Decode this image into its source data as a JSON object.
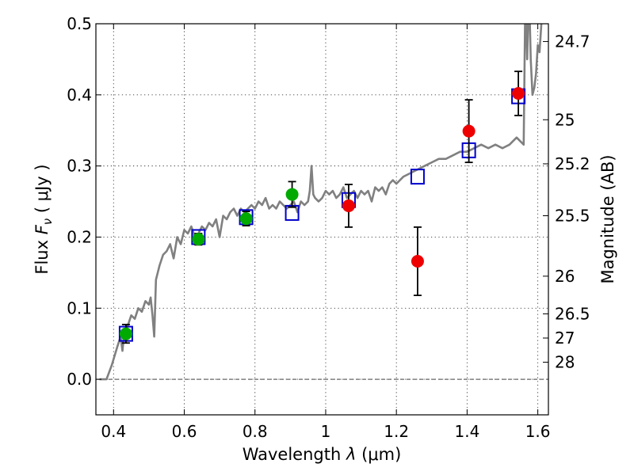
{
  "chart_data": {
    "type": "scatter",
    "xlabel": {
      "prefix": "Wavelength ",
      "symbol": "λ",
      "unit": " (μm)"
    },
    "ylabel": {
      "prefix": "Flux ",
      "symbol": "F",
      "subscript": "ν",
      "unit": " ( μJy )"
    },
    "y2label": "Magnitude (AB)",
    "xlim": [
      0.35,
      1.63
    ],
    "ylim": [
      -0.05,
      0.5
    ],
    "grid": true,
    "x_ticks": [
      0.4,
      0.6,
      0.8,
      1.0,
      1.2,
      1.4,
      1.6
    ],
    "x_tick_labels": [
      "0.4",
      "0.6",
      "0.8",
      "1",
      "1.2",
      "1.4",
      "1.6"
    ],
    "y_ticks": [
      0.0,
      0.1,
      0.2,
      0.3,
      0.4,
      0.5
    ],
    "y_tick_labels": [
      "0.0",
      "0.1",
      "0.2",
      "0.3",
      "0.4",
      "0.5"
    ],
    "magnitude_ticks": [
      {
        "label": "24.7",
        "flux": 0.475
      },
      {
        "label": "25",
        "flux": 0.365
      },
      {
        "label": "25.2",
        "flux": 0.303
      },
      {
        "label": "25.5",
        "flux": 0.23
      },
      {
        "label": "26",
        "flux": 0.145
      },
      {
        "label": "26.5",
        "flux": 0.092
      },
      {
        "label": "27",
        "flux": 0.058
      },
      {
        "label": "28",
        "flux": 0.024
      }
    ],
    "series": [
      {
        "name": "model_spectrum",
        "kind": "line",
        "color": "#808080",
        "points": [
          [
            0.36,
            0.0
          ],
          [
            0.38,
            0.0
          ],
          [
            0.395,
            0.02
          ],
          [
            0.41,
            0.045
          ],
          [
            0.42,
            0.06
          ],
          [
            0.425,
            0.04
          ],
          [
            0.43,
            0.065
          ],
          [
            0.44,
            0.075
          ],
          [
            0.45,
            0.09
          ],
          [
            0.46,
            0.085
          ],
          [
            0.47,
            0.1
          ],
          [
            0.48,
            0.095
          ],
          [
            0.49,
            0.11
          ],
          [
            0.5,
            0.105
          ],
          [
            0.505,
            0.115
          ],
          [
            0.51,
            0.09
          ],
          [
            0.515,
            0.06
          ],
          [
            0.52,
            0.14
          ],
          [
            0.53,
            0.16
          ],
          [
            0.54,
            0.175
          ],
          [
            0.55,
            0.18
          ],
          [
            0.56,
            0.19
          ],
          [
            0.57,
            0.17
          ],
          [
            0.58,
            0.2
          ],
          [
            0.59,
            0.19
          ],
          [
            0.6,
            0.21
          ],
          [
            0.61,
            0.205
          ],
          [
            0.62,
            0.215
          ],
          [
            0.63,
            0.2
          ],
          [
            0.64,
            0.205
          ],
          [
            0.65,
            0.215
          ],
          [
            0.66,
            0.21
          ],
          [
            0.67,
            0.22
          ],
          [
            0.68,
            0.215
          ],
          [
            0.69,
            0.225
          ],
          [
            0.7,
            0.2
          ],
          [
            0.71,
            0.23
          ],
          [
            0.72,
            0.225
          ],
          [
            0.73,
            0.235
          ],
          [
            0.74,
            0.24
          ],
          [
            0.75,
            0.23
          ],
          [
            0.76,
            0.24
          ],
          [
            0.77,
            0.235
          ],
          [
            0.78,
            0.24
          ],
          [
            0.79,
            0.245
          ],
          [
            0.8,
            0.24
          ],
          [
            0.81,
            0.25
          ],
          [
            0.82,
            0.245
          ],
          [
            0.83,
            0.255
          ],
          [
            0.84,
            0.24
          ],
          [
            0.85,
            0.245
          ],
          [
            0.86,
            0.24
          ],
          [
            0.87,
            0.25
          ],
          [
            0.88,
            0.245
          ],
          [
            0.89,
            0.24
          ],
          [
            0.9,
            0.245
          ],
          [
            0.91,
            0.25
          ],
          [
            0.92,
            0.235
          ],
          [
            0.93,
            0.25
          ],
          [
            0.94,
            0.245
          ],
          [
            0.95,
            0.25
          ],
          [
            0.955,
            0.265
          ],
          [
            0.96,
            0.3
          ],
          [
            0.965,
            0.26
          ],
          [
            0.97,
            0.255
          ],
          [
            0.98,
            0.25
          ],
          [
            0.99,
            0.255
          ],
          [
            1.0,
            0.265
          ],
          [
            1.01,
            0.26
          ],
          [
            1.02,
            0.265
          ],
          [
            1.03,
            0.255
          ],
          [
            1.04,
            0.26
          ],
          [
            1.05,
            0.27
          ],
          [
            1.06,
            0.255
          ],
          [
            1.07,
            0.26
          ],
          [
            1.08,
            0.265
          ],
          [
            1.09,
            0.255
          ],
          [
            1.1,
            0.265
          ],
          [
            1.11,
            0.26
          ],
          [
            1.12,
            0.265
          ],
          [
            1.13,
            0.25
          ],
          [
            1.14,
            0.27
          ],
          [
            1.15,
            0.265
          ],
          [
            1.16,
            0.27
          ],
          [
            1.17,
            0.26
          ],
          [
            1.18,
            0.275
          ],
          [
            1.19,
            0.28
          ],
          [
            1.2,
            0.275
          ],
          [
            1.21,
            0.28
          ],
          [
            1.22,
            0.285
          ],
          [
            1.24,
            0.29
          ],
          [
            1.26,
            0.295
          ],
          [
            1.28,
            0.3
          ],
          [
            1.3,
            0.305
          ],
          [
            1.32,
            0.31
          ],
          [
            1.34,
            0.31
          ],
          [
            1.36,
            0.315
          ],
          [
            1.38,
            0.32
          ],
          [
            1.4,
            0.32
          ],
          [
            1.42,
            0.325
          ],
          [
            1.44,
            0.33
          ],
          [
            1.46,
            0.325
          ],
          [
            1.48,
            0.33
          ],
          [
            1.5,
            0.325
          ],
          [
            1.52,
            0.33
          ],
          [
            1.54,
            0.34
          ],
          [
            1.55,
            0.335
          ],
          [
            1.56,
            0.33
          ],
          [
            1.565,
            0.55
          ],
          [
            1.57,
            0.45
          ],
          [
            1.575,
            0.55
          ],
          [
            1.58,
            0.45
          ],
          [
            1.585,
            0.4
          ],
          [
            1.59,
            0.41
          ],
          [
            1.595,
            0.43
          ],
          [
            1.6,
            0.47
          ],
          [
            1.605,
            0.46
          ],
          [
            1.61,
            0.5
          ],
          [
            1.615,
            0.52
          ],
          [
            1.62,
            0.55
          ]
        ]
      },
      {
        "name": "model_photometry",
        "kind": "open_square",
        "color": "#0000cc",
        "points": [
          [
            0.435,
            0.064
          ],
          [
            0.64,
            0.2
          ],
          [
            0.775,
            0.228
          ],
          [
            0.905,
            0.234
          ],
          [
            1.065,
            0.252
          ],
          [
            1.26,
            0.285
          ],
          [
            1.405,
            0.322
          ],
          [
            1.545,
            0.398
          ]
        ]
      },
      {
        "name": "optical_observations",
        "kind": "filled_circle",
        "color": "#00aa00",
        "points": [
          {
            "x": 0.435,
            "y": 0.064,
            "err": 0.013
          },
          {
            "x": 0.64,
            "y": 0.197,
            "err": 0.008
          },
          {
            "x": 0.775,
            "y": 0.226,
            "err": 0.01
          },
          {
            "x": 0.905,
            "y": 0.26,
            "err": 0.018
          }
        ]
      },
      {
        "name": "nir_observations",
        "kind": "filled_circle",
        "color": "#ee0000",
        "points": [
          {
            "x": 1.065,
            "y": 0.244,
            "err": 0.03
          },
          {
            "x": 1.26,
            "y": 0.166,
            "err": 0.048
          },
          {
            "x": 1.405,
            "y": 0.349,
            "err": 0.044
          },
          {
            "x": 1.545,
            "y": 0.402,
            "err": 0.031
          }
        ]
      }
    ]
  }
}
